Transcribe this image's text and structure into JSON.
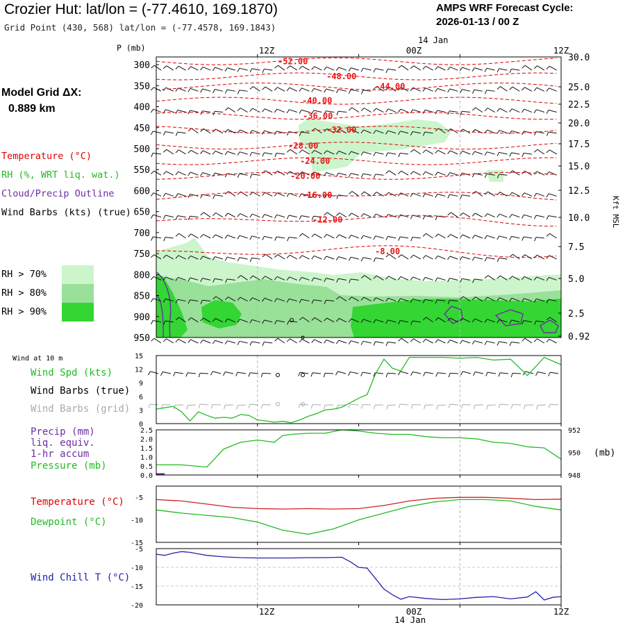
{
  "header": {
    "title": "Crozier Hut:  lat/lon = (-77.4610, 169.1870)",
    "grid_point": "Grid Point (430, 568) lat/lon = (-77.4578, 169.1843)",
    "cycle_title": "AMPS WRF Forecast Cycle:",
    "cycle_value": "2026-01-13 / 00  Z"
  },
  "model_grid": {
    "label": "Model Grid ΔX:",
    "value": "0.889 km"
  },
  "legend": {
    "temperature": "Temperature (°C)",
    "rh": "RH (%, WRT liq. wat.)",
    "cloud": "Cloud/Precip Outline",
    "wind": "Wind Barbs (kts) (true)",
    "rh_levels": [
      {
        "label": "RH > 70%",
        "color": "#ccf5cc"
      },
      {
        "label": "RH > 80%",
        "color": "#99e099"
      },
      {
        "label": "RH > 90%",
        "color": "#33d633"
      }
    ]
  },
  "colors": {
    "temperature": "#dd0000",
    "temperature_label": "#ee1111",
    "rh_line": "#22bb22",
    "cloud": "#6a2ea3",
    "wind_chill": "#2222aa",
    "grid_barb": "#aaaaaa",
    "precip_bar": "#6a2ea3"
  },
  "chart_data": [
    {
      "type": "contour",
      "name": "cross-section",
      "title": "Vertical time-height section",
      "ylabel": "P (mb)",
      "ylabel_right": "Kft MSL",
      "x_ticks_top": [
        "12Z",
        "00Z",
        "12Z"
      ],
      "date_label": "14 Jan",
      "pressure_levels": [
        300,
        350,
        400,
        450,
        500,
        550,
        600,
        650,
        700,
        750,
        800,
        850,
        900,
        950
      ],
      "height_ticks_kft": [
        "30.0",
        "25.0",
        "22.5",
        "20.0",
        "17.5",
        "15.0",
        "12.5",
        "10.0",
        "7.5",
        "5.0",
        "2.5",
        "0.92"
      ],
      "ylim": [
        950,
        280
      ],
      "x_hours": [
        0,
        48
      ],
      "temperature_contours": [
        "-52.00",
        "-48.00",
        "-44.00",
        "-40.00",
        "-36.00",
        "-32.00",
        "-28.00",
        "-24.00",
        "-20.00",
        "-16.00",
        "-12.00",
        "-8.00"
      ],
      "rh_regions": [
        "RH > 70%",
        "RH > 80%",
        "RH > 90%"
      ]
    },
    {
      "type": "line",
      "name": "wind-10m",
      "panel_title": "Wind at 10 m",
      "labels": [
        "Wind Spd (kts)",
        "Wind Barbs (true)",
        "Wind Barbs (grid)"
      ],
      "ylim": [
        0,
        15
      ],
      "y_ticks": [
        "0",
        "3",
        "6",
        "9",
        "12",
        "15"
      ],
      "x": [
        0,
        2,
        3,
        4,
        5,
        6,
        7,
        8,
        9,
        10,
        11,
        12,
        13,
        14,
        15,
        16,
        17,
        18,
        19,
        20,
        21,
        22,
        23,
        24,
        25,
        26,
        27,
        28,
        29,
        30,
        32,
        34,
        36,
        38,
        40,
        42,
        44,
        46,
        48
      ],
      "series": [
        {
          "name": "Wind Spd (kts)",
          "values": [
            3.2,
            3.8,
            2.6,
            0.6,
            2.6,
            1.8,
            1.2,
            1.4,
            1.2,
            2.0,
            1.8,
            0.8,
            0.6,
            0.3,
            0.5,
            0.2,
            0.8,
            1.6,
            2.2,
            3.0,
            3.2,
            3.6,
            4.6,
            5.6,
            6.4,
            11.0,
            14.2,
            12.2,
            11.6,
            14.6,
            14.6,
            14.6,
            14.4,
            14.6,
            14.0,
            14.2,
            10.6,
            14.6,
            13.0
          ]
        }
      ]
    },
    {
      "type": "line",
      "name": "precip-pressure",
      "labels": [
        "Precip (mm)",
        "liq. equiv.",
        "1-hr accum",
        "Pressure (mb)"
      ],
      "y_ticks_left": [
        "0.0",
        "0.5",
        "1.0",
        "1.5",
        "2.0",
        "2.5"
      ],
      "y_ticks_right": [
        "948",
        "950",
        "952"
      ],
      "right_unit": "(mb)",
      "ylim_left": [
        0,
        2.5
      ],
      "ylim_right": [
        948,
        952
      ],
      "precip": {
        "x": [
          0,
          1
        ],
        "values": [
          0.1,
          0.1
        ]
      },
      "x": [
        0,
        3,
        6,
        8,
        10,
        12,
        14,
        15,
        16,
        18,
        20,
        22,
        24,
        26,
        28,
        30,
        32,
        34,
        36,
        38,
        40,
        42,
        44,
        46,
        48
      ],
      "series": [
        {
          "name": "Pressure (mb)",
          "values": [
            948.9,
            948.9,
            948.7,
            950.3,
            950.9,
            951.1,
            950.9,
            951.5,
            951.6,
            951.7,
            951.7,
            952.0,
            951.9,
            951.7,
            951.6,
            951.6,
            951.4,
            951.3,
            951.3,
            951.2,
            950.9,
            950.8,
            950.5,
            950.4,
            949.4
          ]
        }
      ]
    },
    {
      "type": "line",
      "name": "temperature-dewpoint",
      "labels": [
        "Temperature (°C)",
        "Dewpoint (°C)"
      ],
      "ylim": [
        -15,
        -2.5
      ],
      "y_ticks": [
        "-5",
        "-10",
        "-15"
      ],
      "x": [
        0,
        3,
        6,
        9,
        12,
        15,
        18,
        21,
        24,
        27,
        30,
        33,
        36,
        39,
        42,
        45,
        48
      ],
      "series": [
        {
          "name": "Temperature (°C)",
          "values": [
            -5.5,
            -5.8,
            -6.5,
            -7.2,
            -7.5,
            -7.6,
            -7.5,
            -7.6,
            -7.5,
            -6.8,
            -5.8,
            -5.2,
            -5.0,
            -5.0,
            -5.2,
            -5.5,
            -5.4
          ]
        },
        {
          "name": "Dewpoint (°C)",
          "values": [
            -7.8,
            -8.5,
            -9.0,
            -9.5,
            -10.5,
            -12.3,
            -13.2,
            -12.0,
            -10.0,
            -8.5,
            -7.0,
            -6.0,
            -5.5,
            -5.5,
            -5.8,
            -7.0,
            -7.8
          ]
        }
      ]
    },
    {
      "type": "line",
      "name": "wind-chill",
      "labels": [
        "Wind Chill T (°C)"
      ],
      "ylim": [
        -20,
        -5
      ],
      "y_ticks": [
        "-5",
        "-10",
        "-15",
        "-20"
      ],
      "x": [
        0,
        1,
        2,
        3,
        4,
        5,
        6,
        8,
        10,
        12,
        14,
        16,
        18,
        20,
        22,
        23,
        24,
        25,
        26,
        27,
        28,
        29,
        30,
        32,
        34,
        36,
        38,
        40,
        42,
        44,
        45,
        46,
        47,
        48
      ],
      "series": [
        {
          "name": "Wind Chill T (°C)",
          "values": [
            -6.5,
            -6.8,
            -6.2,
            -5.8,
            -6.0,
            -6.4,
            -6.8,
            -7.2,
            -7.4,
            -7.5,
            -7.5,
            -7.5,
            -7.4,
            -7.4,
            -7.3,
            -8.5,
            -10.0,
            -10.2,
            -13.0,
            -15.8,
            -17.3,
            -18.5,
            -17.8,
            -18.3,
            -18.6,
            -18.4,
            -18.0,
            -17.8,
            -18.4,
            -17.9,
            -16.5,
            -18.7,
            -18.0,
            -17.8
          ]
        }
      ]
    }
  ],
  "bottom_axis": {
    "x_ticks": [
      "12Z",
      "00Z",
      "12Z"
    ],
    "date_label": "14 Jan"
  }
}
